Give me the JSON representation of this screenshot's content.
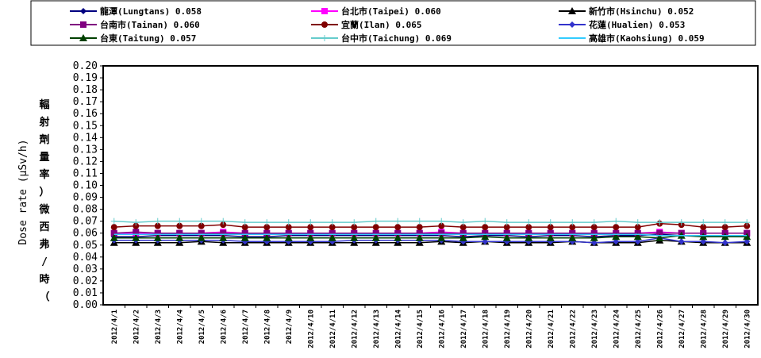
{
  "chart_data": {
    "type": "line",
    "ylabel_en": "Dose rate (μSv/h)",
    "ylabel_zh": [
      "輻",
      "射",
      "劑",
      "量",
      "率",
      "）",
      "微",
      "西",
      "弗",
      "/",
      "時",
      "（"
    ],
    "ylim": [
      0,
      0.2
    ],
    "ytick_labels": [
      "0.00",
      "0.01",
      "0.02",
      "0.03",
      "0.04",
      "0.05",
      "0.06",
      "0.07",
      "0.08",
      "0.09",
      "0.10",
      "0.11",
      "0.12",
      "0.13",
      "0.14",
      "0.15",
      "0.16",
      "0.17",
      "0.18",
      "0.19",
      "0.20"
    ],
    "grid": false,
    "legend_position": "top",
    "categories": [
      "2012/4/1",
      "2012/4/2",
      "2012/4/3",
      "2012/4/4",
      "2012/4/5",
      "2012/4/6",
      "2012/4/7",
      "2012/4/8",
      "2012/4/9",
      "2012/4/10",
      "2012/4/11",
      "2012/4/12",
      "2012/4/13",
      "2012/4/14",
      "2012/4/15",
      "2012/4/16",
      "2012/4/17",
      "2012/4/18",
      "2012/4/19",
      "2012/4/20",
      "2012/4/21",
      "2012/4/22",
      "2012/4/23",
      "2012/4/24",
      "2012/4/25",
      "2012/4/26",
      "2012/4/27",
      "2012/4/28",
      "2012/4/29",
      "2012/4/30"
    ],
    "series": [
      {
        "name": "龍潭(Lungtans) 0.058",
        "color": "#000080",
        "marker": "diamond",
        "values": [
          0.057,
          0.057,
          0.058,
          0.058,
          0.058,
          0.058,
          0.057,
          0.057,
          0.058,
          0.058,
          0.058,
          0.058,
          0.058,
          0.058,
          0.058,
          0.058,
          0.057,
          0.058,
          0.058,
          0.057,
          0.058,
          0.058,
          0.057,
          0.058,
          0.058,
          0.059,
          0.058,
          0.058,
          0.057,
          0.057
        ]
      },
      {
        "name": "台北市(Taipei) 0.060",
        "color": "#ff00ff",
        "marker": "square",
        "values": [
          0.06,
          0.06,
          0.06,
          0.06,
          0.06,
          0.061,
          0.06,
          0.06,
          0.06,
          0.06,
          0.06,
          0.06,
          0.06,
          0.06,
          0.06,
          0.061,
          0.06,
          0.06,
          0.06,
          0.06,
          0.06,
          0.06,
          0.06,
          0.06,
          0.06,
          0.061,
          0.06,
          0.06,
          0.06,
          0.06
        ]
      },
      {
        "name": "新竹市(Hsinchu) 0.052",
        "color": "#000000",
        "marker": "triangle",
        "values": [
          0.052,
          0.052,
          0.052,
          0.052,
          0.053,
          0.052,
          0.052,
          0.052,
          0.052,
          0.052,
          0.052,
          0.052,
          0.052,
          0.052,
          0.052,
          0.053,
          0.052,
          0.053,
          0.052,
          0.052,
          0.052,
          0.053,
          0.052,
          0.052,
          0.052,
          0.054,
          0.053,
          0.052,
          0.052,
          0.052
        ]
      },
      {
        "name": "台南市(Tainan) 0.060",
        "color": "#800080",
        "marker": "square",
        "values": [
          0.06,
          0.061,
          0.06,
          0.06,
          0.06,
          0.06,
          0.06,
          0.06,
          0.06,
          0.06,
          0.06,
          0.06,
          0.06,
          0.06,
          0.06,
          0.06,
          0.06,
          0.06,
          0.06,
          0.06,
          0.06,
          0.06,
          0.06,
          0.06,
          0.06,
          0.06,
          0.06,
          0.06,
          0.06,
          0.06
        ]
      },
      {
        "name": "宜蘭(Ilan) 0.065",
        "color": "#800000",
        "marker": "circle",
        "values": [
          0.065,
          0.066,
          0.066,
          0.066,
          0.066,
          0.067,
          0.065,
          0.065,
          0.065,
          0.065,
          0.065,
          0.065,
          0.065,
          0.065,
          0.065,
          0.066,
          0.065,
          0.065,
          0.065,
          0.065,
          0.065,
          0.065,
          0.065,
          0.065,
          0.065,
          0.068,
          0.067,
          0.065,
          0.065,
          0.066
        ]
      },
      {
        "name": "花蓮(Hualien) 0.053",
        "color": "#3333cc",
        "marker": "diamond",
        "values": [
          0.054,
          0.054,
          0.054,
          0.054,
          0.054,
          0.054,
          0.053,
          0.053,
          0.053,
          0.053,
          0.053,
          0.054,
          0.054,
          0.054,
          0.054,
          0.054,
          0.053,
          0.053,
          0.053,
          0.053,
          0.053,
          0.053,
          0.052,
          0.053,
          0.053,
          0.056,
          0.053,
          0.053,
          0.052,
          0.053
        ]
      },
      {
        "name": "台東(Taitung) 0.057",
        "color": "#004000",
        "marker": "triangle",
        "values": [
          0.056,
          0.056,
          0.056,
          0.056,
          0.056,
          0.056,
          0.056,
          0.056,
          0.056,
          0.056,
          0.056,
          0.056,
          0.056,
          0.056,
          0.056,
          0.056,
          0.056,
          0.057,
          0.056,
          0.056,
          0.056,
          0.056,
          0.056,
          0.057,
          0.057,
          0.056,
          0.058,
          0.057,
          0.057,
          0.057
        ]
      },
      {
        "name": "台中市(Taichung) 0.069",
        "color": "#66cccc",
        "marker": "plus",
        "values": [
          0.07,
          0.069,
          0.07,
          0.07,
          0.07,
          0.07,
          0.069,
          0.069,
          0.069,
          0.069,
          0.069,
          0.069,
          0.07,
          0.07,
          0.07,
          0.07,
          0.069,
          0.07,
          0.069,
          0.069,
          0.069,
          0.069,
          0.069,
          0.07,
          0.069,
          0.069,
          0.069,
          0.069,
          0.069,
          0.069
        ]
      },
      {
        "name": "高雄市(Kaohsiung) 0.059",
        "color": "#33ccff",
        "marker": "none",
        "values": [
          0.059,
          0.059,
          0.059,
          0.059,
          0.059,
          0.059,
          0.059,
          0.059,
          0.059,
          0.059,
          0.059,
          0.059,
          0.059,
          0.059,
          0.059,
          0.059,
          0.059,
          0.059,
          0.059,
          0.059,
          0.059,
          0.059,
          0.059,
          0.059,
          0.059,
          0.058,
          0.058,
          0.058,
          0.058,
          0.058
        ]
      }
    ]
  }
}
